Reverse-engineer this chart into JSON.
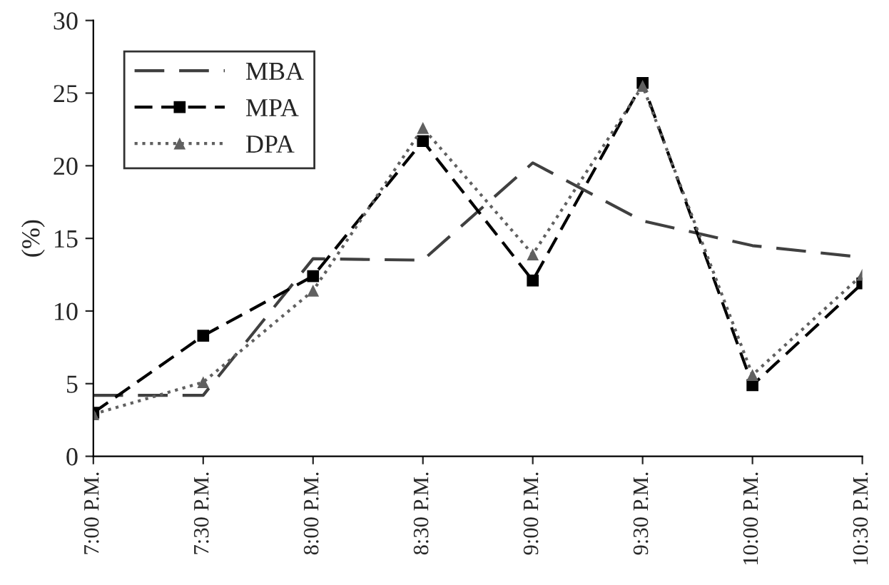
{
  "chart_data": {
    "type": "line",
    "ylabel": "(%)",
    "categories": [
      "7:00 P.M.",
      "7:30 P.M.",
      "8:00 P.M.",
      "8:30 P.M.",
      "9:00 P.M.",
      "9:30 P.M.",
      "10:00 P.M.",
      "10:30 P.M."
    ],
    "series": [
      {
        "name": "MBA",
        "color": "#404040",
        "line_style": "dashed",
        "marker": "none",
        "values": [
          4.2,
          4.2,
          13.6,
          13.5,
          20.2,
          16.2,
          14.5,
          13.7
        ]
      },
      {
        "name": "MPA",
        "color": "#000000",
        "line_style": "dashed",
        "marker": "square",
        "values": [
          3.0,
          8.3,
          12.4,
          21.7,
          12.1,
          25.7,
          4.9,
          11.9
        ]
      },
      {
        "name": "DPA",
        "color": "#606060",
        "line_style": "dotted",
        "marker": "triangle",
        "values": [
          2.9,
          5.1,
          11.4,
          22.6,
          13.9,
          25.5,
          5.6,
          12.5
        ]
      }
    ],
    "ylim": [
      0,
      30
    ],
    "yticks": [
      0,
      5,
      10,
      15,
      20,
      25,
      30
    ],
    "grid": false,
    "legend": "top left"
  }
}
